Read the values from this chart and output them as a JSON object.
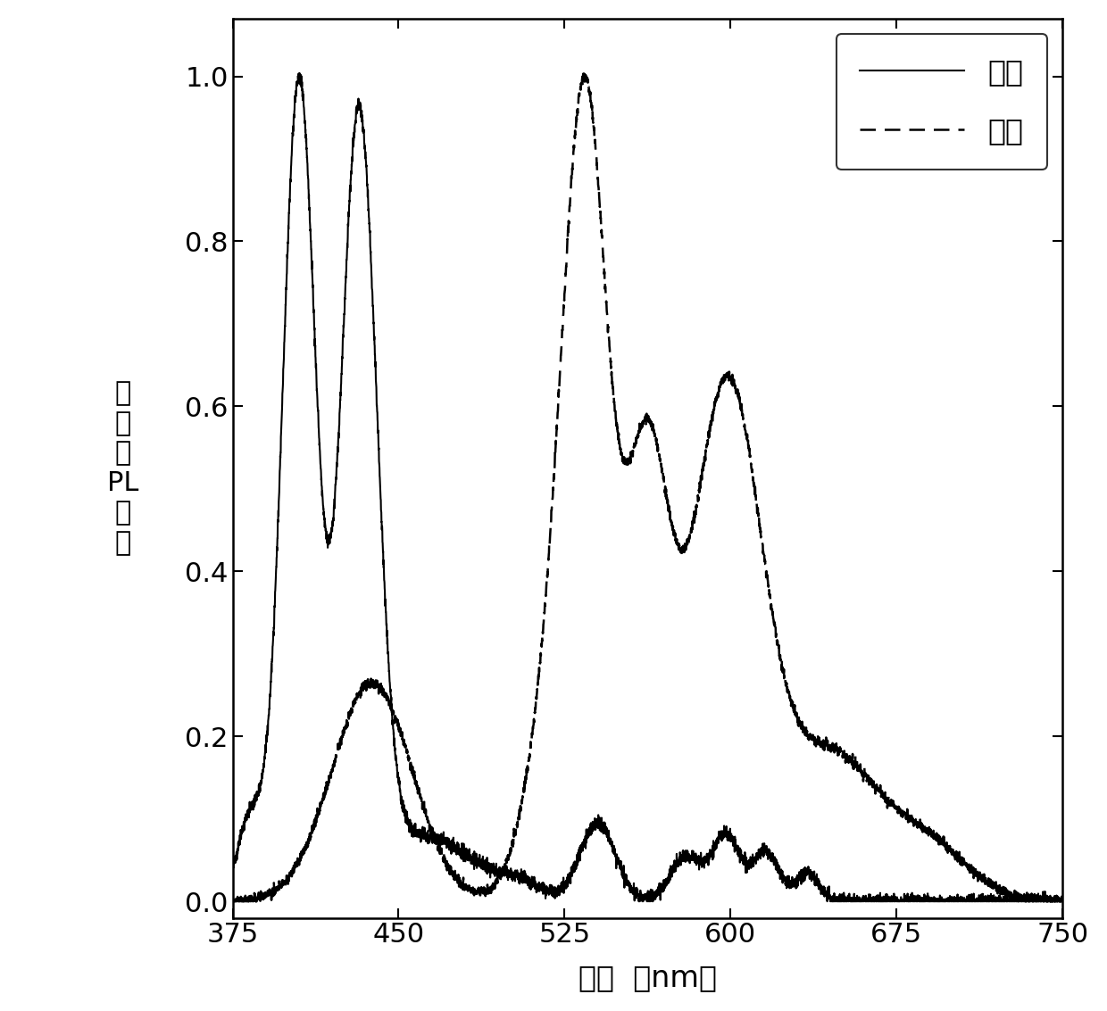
{
  "xlabel": "波长  （nm）",
  "ylabel": "归\n一\n化\nPL\n强\n度",
  "xlim": [
    375,
    750
  ],
  "ylim": [
    -0.02,
    1.07
  ],
  "xticks": [
    375,
    450,
    525,
    600,
    675,
    750
  ],
  "yticks": [
    0.0,
    0.2,
    0.4,
    0.6,
    0.8,
    1.0
  ],
  "legend_labels": [
    "快速",
    "延迟"
  ],
  "background_color": "#ffffff",
  "line_color": "#000000",
  "solid_linewidth": 1.5,
  "dashed_linewidth": 1.8
}
